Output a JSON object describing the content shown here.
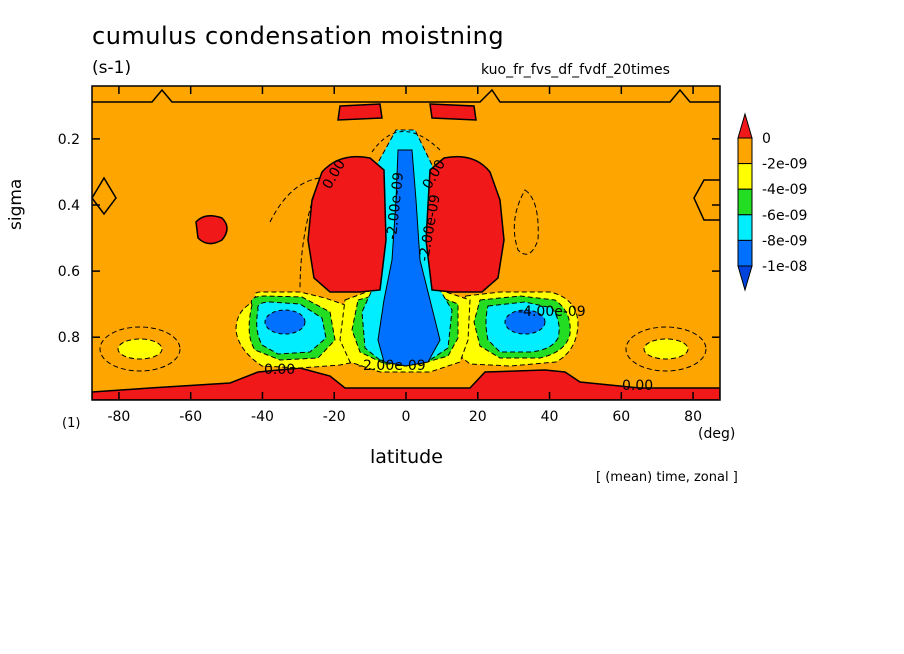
{
  "chart_data": {
    "type": "heatmap",
    "title": "cumulus condensation moistning",
    "units": "(s-1)",
    "subtitle": "kuo_fr_fvs_df_fvdf_20times",
    "xlabel": "latitude",
    "ylabel": "sigma",
    "x_unit": "(deg)",
    "y_unit": "(1)",
    "note": "[ (mean) time, zonal ]",
    "xlim": [
      -87.5,
      87.5
    ],
    "ylim": [
      0.04,
      0.99
    ],
    "y_inverted": true,
    "x_ticks": [
      {
        "value": -80,
        "label": "-80"
      },
      {
        "value": -60,
        "label": "-60"
      },
      {
        "value": -40,
        "label": "-40"
      },
      {
        "value": -20,
        "label": "-20"
      },
      {
        "value": 0,
        "label": "0"
      },
      {
        "value": 20,
        "label": "20"
      },
      {
        "value": 40,
        "label": "40"
      },
      {
        "value": 60,
        "label": "60"
      },
      {
        "value": 80,
        "label": "80"
      }
    ],
    "y_ticks": [
      {
        "value": 0.2,
        "label": "0.2"
      },
      {
        "value": 0.4,
        "label": "0.4"
      },
      {
        "value": 0.6,
        "label": "0.6"
      },
      {
        "value": 0.8,
        "label": "0.8"
      }
    ],
    "colorbar": {
      "labels": [
        "0",
        "-2e-09",
        "-4e-09",
        "-6e-09",
        "-8e-09",
        "-1e-08"
      ],
      "colors": [
        "#f01818",
        "#ffa500",
        "#ffff00",
        "#22dd22",
        "#00eeff",
        "#0070ff",
        "#0044dd"
      ]
    },
    "contour_labels": [
      "0.00",
      "0.00",
      "0.00",
      "0.00",
      "-2.00e-09",
      "-2.00e-09",
      "-4.00e-09",
      "-2.00e-09"
    ],
    "regions": [
      {
        "level": "positive",
        "lat": [
          -87.5,
          87.5
        ],
        "sigma": [
          0.95,
          0.99
        ]
      },
      {
        "level": "positive",
        "lat": [
          -22,
          -3
        ],
        "sigma": [
          0.25,
          0.66
        ]
      },
      {
        "level": "positive",
        "lat": [
          3,
          22
        ],
        "sigma": [
          0.25,
          0.66
        ]
      },
      {
        "level": "positive",
        "lat": [
          -60,
          -52
        ],
        "sigma": [
          0.4,
          0.5
        ]
      },
      {
        "level": "positive",
        "lat": [
          -19,
          -6
        ],
        "sigma": [
          0.06,
          0.12
        ]
      },
      {
        "level": "positive",
        "lat": [
          7,
          19
        ],
        "sigma": [
          0.06,
          0.12
        ]
      },
      {
        "level": "-1e-08",
        "lat": [
          -5,
          7
        ],
        "sigma": [
          0.2,
          0.9
        ]
      },
      {
        "level": "-8e-09",
        "lat": [
          -44,
          -24
        ],
        "sigma": [
          0.67,
          0.88
        ]
      },
      {
        "level": "-8e-09",
        "lat": [
          25,
          47
        ],
        "sigma": [
          0.67,
          0.88
        ]
      },
      {
        "level": "-2e-09",
        "lat": [
          -84,
          -68
        ],
        "sigma": [
          0.78,
          0.9
        ]
      },
      {
        "level": "-2e-09",
        "lat": [
          66,
          82
        ],
        "sigma": [
          0.78,
          0.9
        ]
      }
    ]
  }
}
